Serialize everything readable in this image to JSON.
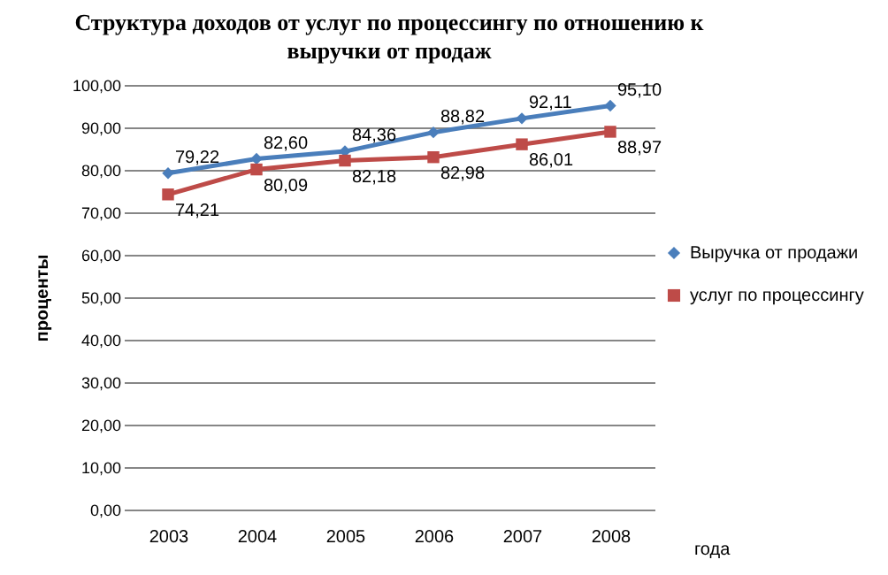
{
  "chart_data": {
    "type": "line",
    "title": "Структура доходов от услуг по процессингу по отношению к выручки от продаж",
    "xlabel": "года",
    "ylabel": "проценты",
    "categories": [
      "2003",
      "2004",
      "2005",
      "2006",
      "2007",
      "2008"
    ],
    "series": [
      {
        "name": "Выручка от продажи",
        "color": "#4a7ebb",
        "marker": "diamond",
        "values": [
          79.22,
          82.6,
          84.36,
          88.82,
          92.11,
          95.1
        ],
        "value_labels": [
          "79,22",
          "82,60",
          "84,36",
          "88,82",
          "92,11",
          "95,10"
        ]
      },
      {
        "name": "услуг по процессингу",
        "color": "#be4b48",
        "marker": "square",
        "values": [
          74.21,
          80.09,
          82.18,
          82.98,
          86.01,
          88.97
        ],
        "value_labels": [
          "74,21",
          "80,09",
          "82,18",
          "82,98",
          "86,01",
          "88,97"
        ]
      }
    ],
    "ylim": [
      0,
      100
    ],
    "yticks": [
      {
        "value": 0,
        "label": "0,00"
      },
      {
        "value": 10,
        "label": "10,00"
      },
      {
        "value": 20,
        "label": "20,00"
      },
      {
        "value": 30,
        "label": "30,00"
      },
      {
        "value": 40,
        "label": "40,00"
      },
      {
        "value": 50,
        "label": "50,00"
      },
      {
        "value": 60,
        "label": "60,00"
      },
      {
        "value": 70,
        "label": "70,00"
      },
      {
        "value": 80,
        "label": "80,00"
      },
      {
        "value": 90,
        "label": "90,00"
      },
      {
        "value": 100,
        "label": "100,00"
      }
    ],
    "grid": "y",
    "legend": "right",
    "line_style": "solid"
  }
}
